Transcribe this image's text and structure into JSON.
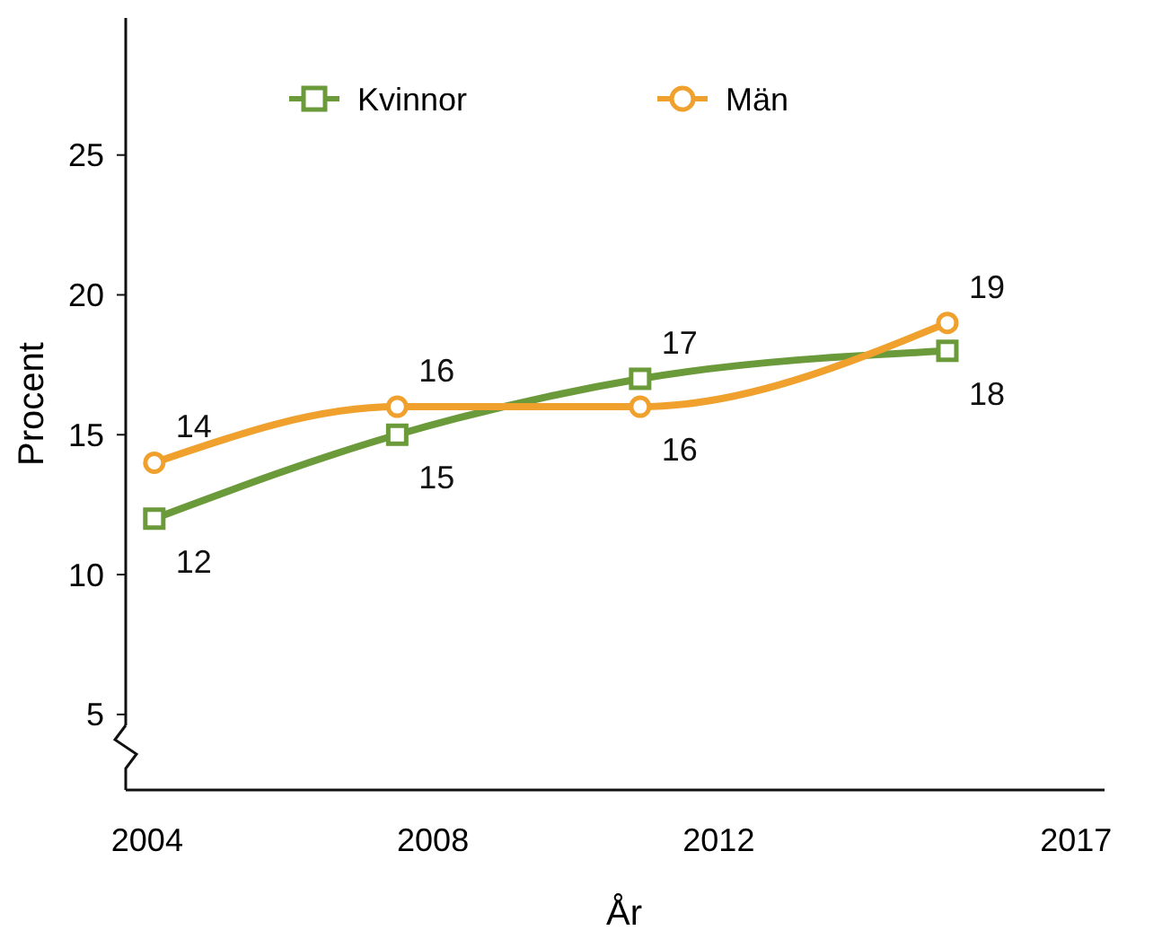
{
  "chart_data": {
    "type": "line",
    "xlabel": "År",
    "ylabel": "Procent",
    "x": [
      2004.1,
      2007.5,
      2010.9,
      2015.2
    ],
    "series": [
      {
        "name": "Kvinnor",
        "color": "#6b9a3a",
        "marker": "square",
        "values": [
          12,
          15,
          17,
          18
        ]
      },
      {
        "name": "Män",
        "color": "#f0a02c",
        "marker": "circle",
        "values": [
          14,
          16,
          16,
          19
        ]
      }
    ],
    "xlim": [
      2003.7,
      2017.4
    ],
    "xticks": [
      2004,
      2008,
      2012,
      2017
    ],
    "ylim": [
      2.3,
      29.9
    ],
    "yticks": [
      5,
      10,
      15,
      20,
      25
    ],
    "data_labels": true,
    "legend": "top",
    "grid": false,
    "line_style": "solid"
  }
}
